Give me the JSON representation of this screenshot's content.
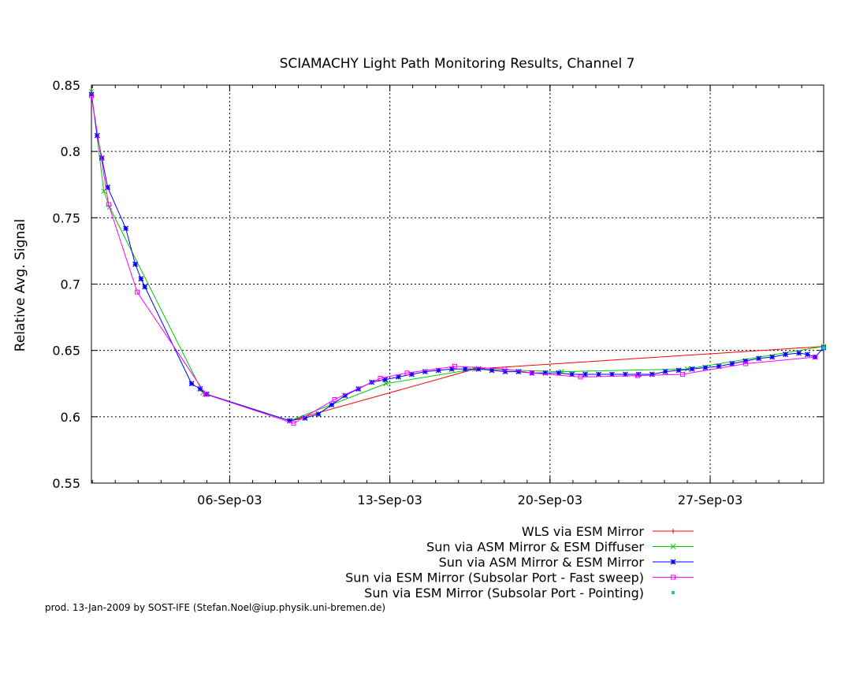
{
  "chart_data": {
    "type": "line",
    "title": "SCIAMACHY Light Path Monitoring Results, Channel 7",
    "ylabel": "Relative Avg. Signal",
    "xlabel": "",
    "x_axis_type": "date",
    "xlim": [
      "2003-08-30T23:00",
      "2003-10-01T23:00"
    ],
    "ylim": [
      0.55,
      0.85
    ],
    "x_ticks": [
      {
        "date": "2003-09-06",
        "label": "06-Sep-03"
      },
      {
        "date": "2003-09-13",
        "label": "13-Sep-03"
      },
      {
        "date": "2003-09-20",
        "label": "20-Sep-03"
      },
      {
        "date": "2003-09-27",
        "label": "27-Sep-03"
      }
    ],
    "y_ticks": [
      "0.55",
      "0.6",
      "0.65",
      "0.7",
      "0.75",
      "0.8",
      "0.85"
    ],
    "y_tick_values": [
      0.55,
      0.6,
      0.65,
      0.7,
      0.75,
      0.8,
      0.85
    ],
    "grid": true,
    "grid_style": "dotted",
    "legend_position": "bottom-right, below plot",
    "series": [
      {
        "name": "WLS via ESM Mirror",
        "color": "#ff0000",
        "marker": "plus",
        "points": [
          [
            "2003-09-08T15:00",
            0.597
          ],
          [
            "2003-09-16T17:00",
            0.636
          ],
          [
            "2003-10-01T23:00",
            0.653
          ]
        ]
      },
      {
        "name": "Sun via ASM Mirror & ESM Diffuser",
        "color": "#00cc00",
        "marker": "x",
        "points": [
          [
            "2003-08-30T23:00",
            0.845
          ],
          [
            "2003-08-31T12:00",
            0.77
          ],
          [
            "2003-08-31T18:00",
            0.758
          ],
          [
            "2003-09-04T20:00",
            0.618
          ],
          [
            "2003-09-04T22:00",
            0.617
          ],
          [
            "2003-09-08T15:00",
            0.597
          ],
          [
            "2003-09-12T20:00",
            0.625
          ],
          [
            "2003-09-16T17:00",
            0.636
          ],
          [
            "2003-09-20T12:00",
            0.634
          ],
          [
            "2003-09-26T00:00",
            0.636
          ],
          [
            "2003-10-01T23:00",
            0.653
          ]
        ]
      },
      {
        "name": "Sun via ASM Mirror & ESM Mirror",
        "color": "#0000ff",
        "marker": "star",
        "points": [
          [
            "2003-08-30T23:00",
            0.843
          ],
          [
            "2003-08-31T05:00",
            0.812
          ],
          [
            "2003-08-31T10:00",
            0.795
          ],
          [
            "2003-08-31T16:00",
            0.773
          ],
          [
            "2003-09-01T11:00",
            0.742
          ],
          [
            "2003-09-01T21:00",
            0.715
          ],
          [
            "2003-09-02T03:00",
            0.704
          ],
          [
            "2003-09-02T07:00",
            0.698
          ],
          [
            "2003-09-04T08:00",
            0.625
          ],
          [
            "2003-09-04T17:00",
            0.621
          ],
          [
            "2003-09-05T00:00",
            0.617
          ],
          [
            "2003-09-08T15:00",
            0.597
          ],
          [
            "2003-09-09T07:00",
            0.599
          ],
          [
            "2003-09-09T21:00",
            0.602
          ],
          [
            "2003-09-10T11:00",
            0.609
          ],
          [
            "2003-09-11T01:00",
            0.616
          ],
          [
            "2003-09-11T15:00",
            0.621
          ],
          [
            "2003-09-12T05:00",
            0.626
          ],
          [
            "2003-09-12T19:00",
            0.628
          ],
          [
            "2003-09-13T09:00",
            0.63
          ],
          [
            "2003-09-13T23:00",
            0.632
          ],
          [
            "2003-09-14T13:00",
            0.634
          ],
          [
            "2003-09-15T03:00",
            0.635
          ],
          [
            "2003-09-15T17:00",
            0.636
          ],
          [
            "2003-09-16T07:00",
            0.636
          ],
          [
            "2003-09-16T21:00",
            0.636
          ],
          [
            "2003-09-17T11:00",
            0.635
          ],
          [
            "2003-09-18T01:00",
            0.634
          ],
          [
            "2003-09-18T15:00",
            0.634
          ],
          [
            "2003-09-19T05:00",
            0.633
          ],
          [
            "2003-09-19T19:00",
            0.633
          ],
          [
            "2003-09-20T09:00",
            0.633
          ],
          [
            "2003-09-20T23:00",
            0.632
          ],
          [
            "2003-09-21T13:00",
            0.632
          ],
          [
            "2003-09-22T03:00",
            0.632
          ],
          [
            "2003-09-22T17:00",
            0.632
          ],
          [
            "2003-09-23T07:00",
            0.632
          ],
          [
            "2003-09-23T21:00",
            0.632
          ],
          [
            "2003-09-24T11:00",
            0.632
          ],
          [
            "2003-09-25T01:00",
            0.634
          ],
          [
            "2003-09-25T15:00",
            0.635
          ],
          [
            "2003-09-26T05:00",
            0.636
          ],
          [
            "2003-09-26T19:00",
            0.637
          ],
          [
            "2003-09-27T09:00",
            0.638
          ],
          [
            "2003-09-27T23:00",
            0.64
          ],
          [
            "2003-09-28T13:00",
            0.642
          ],
          [
            "2003-09-29T03:00",
            0.644
          ],
          [
            "2003-09-29T17:00",
            0.645
          ],
          [
            "2003-09-30T07:00",
            0.647
          ],
          [
            "2003-09-30T21:00",
            0.648
          ],
          [
            "2003-10-01T06:00",
            0.647
          ],
          [
            "2003-10-01T14:00",
            0.645
          ],
          [
            "2003-10-01T23:00",
            0.652
          ]
        ]
      },
      {
        "name": "Sun via ESM Mirror (Subsolar Port - Fast sweep)",
        "color": "#ff00ff",
        "marker": "open-square",
        "points": [
          [
            "2003-08-30T23:00",
            0.842
          ],
          [
            "2003-08-31T17:00",
            0.76
          ],
          [
            "2003-09-01T23:00",
            0.694
          ],
          [
            "2003-09-04T23:00",
            0.617
          ],
          [
            "2003-09-08T19:00",
            0.595
          ],
          [
            "2003-09-10T14:00",
            0.613
          ],
          [
            "2003-09-12T14:00",
            0.629
          ],
          [
            "2003-09-13T18:00",
            0.633
          ],
          [
            "2003-09-15T20:00",
            0.638
          ],
          [
            "2003-09-18T00:00",
            0.636
          ],
          [
            "2003-09-19T05:00",
            0.633
          ],
          [
            "2003-09-21T08:00",
            0.63
          ],
          [
            "2003-09-23T20:00",
            0.631
          ],
          [
            "2003-09-25T19:00",
            0.632
          ],
          [
            "2003-09-28T13:00",
            0.64
          ],
          [
            "2003-10-01T14:00",
            0.645
          ]
        ]
      },
      {
        "name": "Sun via ESM Mirror (Subsolar Port - Pointing)",
        "color": "#00cccc",
        "marker": "dot",
        "points": [
          [
            "2003-10-01T23:00",
            0.652
          ]
        ]
      }
    ]
  },
  "footer": "prod. 13-Jan-2009 by SOST-IFE (Stefan.Noel@iup.physik.uni-bremen.de)"
}
